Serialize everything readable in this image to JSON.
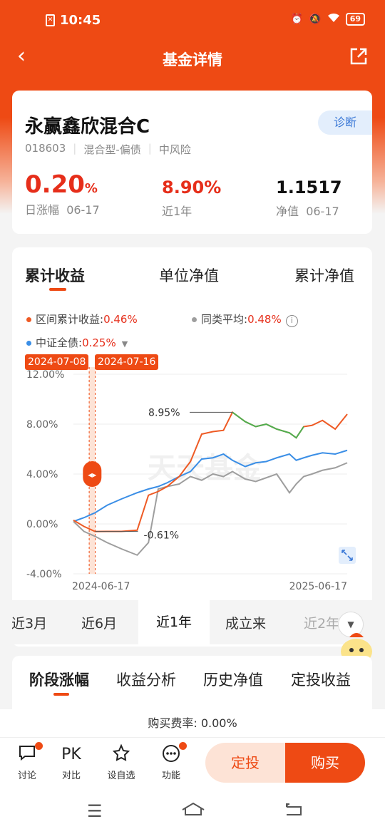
{
  "status_bar": {
    "time": "10:45",
    "battery": "69"
  },
  "nav": {
    "title": "基金详情"
  },
  "fund": {
    "name": "永赢鑫欣混合C",
    "diagnose_label": "诊断",
    "code": "018603",
    "type": "混合型-偏债",
    "risk": "中风险",
    "daily_change_value": "0.20",
    "daily_change_unit": "%",
    "daily_change_label": "日涨幅",
    "daily_change_date": "06-17",
    "one_year_value": "8.90%",
    "one_year_label": "近1年",
    "nav_value": "1.1517",
    "nav_label": "净值",
    "nav_date": "06-17"
  },
  "chart_tabs": [
    "累计收益",
    "单位净值",
    "累计净值"
  ],
  "legend": {
    "fund_label": "区间累计收益:",
    "fund_value": "0.46%",
    "peer_label": "同类平均:",
    "peer_value": "0.48%",
    "index_label": "中证全债:",
    "index_value": "0.25%"
  },
  "date_tags": [
    "2024-07-08",
    "2024-07-16"
  ],
  "chart_data": {
    "type": "line",
    "x_range": [
      "2024-06-17",
      "2025-06-17"
    ],
    "ylim": [
      -4,
      12
    ],
    "y_ticks": [
      "12.00%",
      "8.00%",
      "4.00%",
      "0.00%",
      "-4.00%"
    ],
    "x_ticks": [
      "2024-06-17",
      "2025-06-17"
    ],
    "annotations": {
      "max_label": "8.95%",
      "min_label": "-0.61%"
    },
    "watermark": "天天基金",
    "series": [
      {
        "color": "#ee5a24",
        "dates": [
          "2024-06-17",
          "2024-07-01",
          "2024-07-16",
          "2024-08-01",
          "2024-08-20",
          "2024-09-10",
          "2024-09-25",
          "2024-10-08",
          "2024-10-20",
          "2024-11-05",
          "2024-11-20",
          "2024-12-05",
          "2024-12-20",
          "2025-01-03",
          "2025-01-15",
          "2025-02-01",
          "2025-02-15",
          "2025-03-01",
          "2025-03-15",
          "2025-04-01",
          "2025-04-10",
          "2025-04-20",
          "2025-05-01",
          "2025-05-15",
          "2025-06-01",
          "2025-06-17"
        ],
        "values": [
          0.3,
          -0.2,
          -0.61,
          -0.6,
          -0.6,
          -0.5,
          2.3,
          2.6,
          3.0,
          3.8,
          5.0,
          7.2,
          7.4,
          7.5,
          8.95,
          8.2,
          7.8,
          8.0,
          7.6,
          7.3,
          6.9,
          7.8,
          7.9,
          8.3,
          7.6,
          8.8
        ]
      },
      {
        "color": "#9e9e9e",
        "dates": [
          "2024-06-17",
          "2024-07-01",
          "2024-07-16",
          "2024-08-01",
          "2024-08-20",
          "2024-09-10",
          "2024-09-25",
          "2024-10-08",
          "2024-10-20",
          "2024-11-05",
          "2024-11-20",
          "2024-12-05",
          "2024-12-20",
          "2025-01-03",
          "2025-01-15",
          "2025-02-01",
          "2025-02-15",
          "2025-03-01",
          "2025-03-15",
          "2025-04-01",
          "2025-04-10",
          "2025-04-20",
          "2025-05-01",
          "2025-05-15",
          "2025-06-01",
          "2025-06-17"
        ],
        "values": [
          0.2,
          -0.6,
          -1.0,
          -1.5,
          -2.0,
          -2.5,
          -1.5,
          2.8,
          3.0,
          3.2,
          3.8,
          3.5,
          4.0,
          3.8,
          4.2,
          3.6,
          3.4,
          3.7,
          4.0,
          2.5,
          3.2,
          3.8,
          4.0,
          4.3,
          4.5,
          4.9
        ]
      },
      {
        "color": "#3a8ee6",
        "dates": [
          "2024-06-17",
          "2024-07-01",
          "2024-07-16",
          "2024-08-01",
          "2024-08-20",
          "2024-09-10",
          "2024-09-25",
          "2024-10-08",
          "2024-10-20",
          "2024-11-05",
          "2024-11-20",
          "2024-12-05",
          "2024-12-20",
          "2025-01-03",
          "2025-01-15",
          "2025-02-01",
          "2025-02-15",
          "2025-03-01",
          "2025-03-15",
          "2025-04-01",
          "2025-04-10",
          "2025-04-20",
          "2025-05-01",
          "2025-05-15",
          "2025-06-01",
          "2025-06-17"
        ],
        "values": [
          0.2,
          0.5,
          0.9,
          1.5,
          2.0,
          2.5,
          2.8,
          3.0,
          3.3,
          3.8,
          4.2,
          5.2,
          5.3,
          5.6,
          5.1,
          4.6,
          4.9,
          5.0,
          5.3,
          5.6,
          5.1,
          5.3,
          5.5,
          5.7,
          5.6,
          5.9
        ]
      }
    ]
  },
  "periods": [
    "近3月",
    "近6月",
    "近1年",
    "成立来",
    "近2年"
  ],
  "active_period": "近1年",
  "section2_tabs": [
    "阶段涨幅",
    "收益分析",
    "历史净值",
    "定投收益"
  ],
  "fee_text": "购买费率: 0.00%",
  "toolbar": [
    {
      "label": "讨论",
      "icon": "chat-icon"
    },
    {
      "label": "对比",
      "icon": "PK"
    },
    {
      "label": "设自选",
      "icon": "star-plus-icon"
    },
    {
      "label": "功能",
      "icon": "more-icon"
    }
  ],
  "buttons": {
    "dingtou": "定投",
    "buy": "购买"
  }
}
